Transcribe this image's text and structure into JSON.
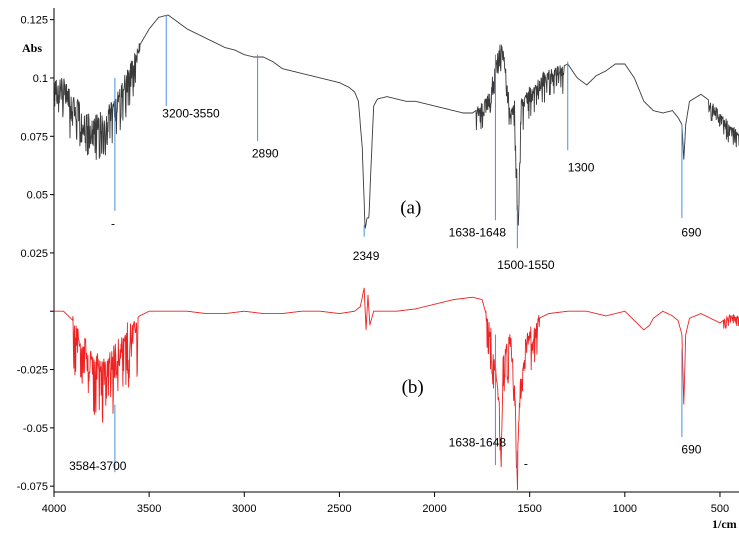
{
  "chart_data": {
    "type": "line",
    "xlabel": "1/cm",
    "ylabel": "Abs",
    "x_reversed": true,
    "xlim": [
      4000,
      400
    ],
    "ylim": [
      -0.0775,
      0.13
    ],
    "x_ticks": [
      4000,
      3500,
      3000,
      2500,
      2000,
      1500,
      1000,
      500
    ],
    "y_ticks": [
      {
        "value": 0.125,
        "label": "0.125"
      },
      {
        "value": 0.1,
        "label": "0.1"
      },
      {
        "value": 0.075,
        "label": "0.075"
      },
      {
        "value": 0.05,
        "label": "0.05"
      },
      {
        "value": 0.025,
        "label": "0.025"
      },
      {
        "value": 0,
        "label": ""
      },
      {
        "value": -0.025,
        "label": "-0.025"
      },
      {
        "value": -0.05,
        "label": "-0.05"
      },
      {
        "value": -0.075,
        "label": "-0.075"
      }
    ],
    "grid": false,
    "legend": "none",
    "series": [
      {
        "id": "a",
        "color": "#3a3a3a",
        "noise": [
          {
            "from": 4000,
            "to": 3550,
            "amp": 0.018
          },
          {
            "from": 1780,
            "to": 1320,
            "amp": 0.012
          },
          {
            "from": 560,
            "to": 400,
            "amp": 0.008
          }
        ],
        "points": [
          [
            4000,
            0.1
          ],
          [
            3950,
            0.098
          ],
          [
            3900,
            0.092
          ],
          [
            3850,
            0.086
          ],
          [
            3800,
            0.082
          ],
          [
            3750,
            0.084
          ],
          [
            3700,
            0.088
          ],
          [
            3650,
            0.095
          ],
          [
            3600,
            0.105
          ],
          [
            3550,
            0.114
          ],
          [
            3500,
            0.121
          ],
          [
            3450,
            0.126
          ],
          [
            3400,
            0.127
          ],
          [
            3350,
            0.124
          ],
          [
            3300,
            0.121
          ],
          [
            3250,
            0.119
          ],
          [
            3200,
            0.117
          ],
          [
            3150,
            0.115
          ],
          [
            3100,
            0.113
          ],
          [
            3050,
            0.112
          ],
          [
            3000,
            0.11
          ],
          [
            2950,
            0.109
          ],
          [
            2900,
            0.109
          ],
          [
            2850,
            0.107
          ],
          [
            2800,
            0.104
          ],
          [
            2750,
            0.103
          ],
          [
            2700,
            0.102
          ],
          [
            2650,
            0.101
          ],
          [
            2600,
            0.1
          ],
          [
            2550,
            0.099
          ],
          [
            2500,
            0.098
          ],
          [
            2450,
            0.096
          ],
          [
            2420,
            0.094
          ],
          [
            2400,
            0.09
          ],
          [
            2380,
            0.07
          ],
          [
            2365,
            0.035
          ],
          [
            2355,
            0.04
          ],
          [
            2345,
            0.04
          ],
          [
            2335,
            0.06
          ],
          [
            2320,
            0.088
          ],
          [
            2300,
            0.091
          ],
          [
            2250,
            0.092
          ],
          [
            2200,
            0.091
          ],
          [
            2150,
            0.09
          ],
          [
            2100,
            0.09
          ],
          [
            2050,
            0.089
          ],
          [
            2000,
            0.088
          ],
          [
            1950,
            0.087
          ],
          [
            1900,
            0.086
          ],
          [
            1850,
            0.085
          ],
          [
            1800,
            0.085
          ],
          [
            1750,
            0.088
          ],
          [
            1720,
            0.092
          ],
          [
            1700,
            0.098
          ],
          [
            1680,
            0.107
          ],
          [
            1660,
            0.113
          ],
          [
            1640,
            0.114
          ],
          [
            1630,
            0.105
          ],
          [
            1620,
            0.1
          ],
          [
            1600,
            0.085
          ],
          [
            1580,
            0.09
          ],
          [
            1560,
            0.04
          ],
          [
            1545,
            0.09
          ],
          [
            1500,
            0.095
          ],
          [
            1450,
            0.1
          ],
          [
            1400,
            0.103
          ],
          [
            1350,
            0.104
          ],
          [
            1300,
            0.106
          ],
          [
            1250,
            0.1
          ],
          [
            1200,
            0.097
          ],
          [
            1150,
            0.101
          ],
          [
            1100,
            0.103
          ],
          [
            1050,
            0.106
          ],
          [
            1000,
            0.106
          ],
          [
            950,
            0.1
          ],
          [
            900,
            0.09
          ],
          [
            850,
            0.086
          ],
          [
            800,
            0.085
          ],
          [
            750,
            0.086
          ],
          [
            720,
            0.083
          ],
          [
            700,
            0.08
          ],
          [
            690,
            0.065
          ],
          [
            680,
            0.08
          ],
          [
            660,
            0.09
          ],
          [
            600,
            0.093
          ],
          [
            550,
            0.09
          ],
          [
            500,
            0.085
          ],
          [
            450,
            0.08
          ],
          [
            400,
            0.076
          ]
        ]
      },
      {
        "id": "b",
        "color": "#ee2222",
        "noise": [
          {
            "from": 3900,
            "to": 3560,
            "amp": 0.025
          },
          {
            "from": 1730,
            "to": 1450,
            "amp": 0.018
          },
          {
            "from": 480,
            "to": 400,
            "amp": 0.005
          }
        ],
        "points": [
          [
            4000,
            0.0
          ],
          [
            3950,
            0.0
          ],
          [
            3900,
            -0.004
          ],
          [
            3850,
            -0.012
          ],
          [
            3800,
            -0.018
          ],
          [
            3750,
            -0.022
          ],
          [
            3700,
            -0.018
          ],
          [
            3650,
            -0.012
          ],
          [
            3600,
            -0.006
          ],
          [
            3550,
            -0.002
          ],
          [
            3500,
            0.0
          ],
          [
            3400,
            0.0
          ],
          [
            3300,
            0.0
          ],
          [
            3200,
            -0.001
          ],
          [
            3100,
            -0.001
          ],
          [
            3000,
            0.0
          ],
          [
            2900,
            -0.001
          ],
          [
            2800,
            -0.001
          ],
          [
            2700,
            0.0
          ],
          [
            2600,
            0.0
          ],
          [
            2500,
            -0.001
          ],
          [
            2420,
            0.0
          ],
          [
            2390,
            0.002
          ],
          [
            2370,
            0.01
          ],
          [
            2360,
            -0.008
          ],
          [
            2350,
            0.007
          ],
          [
            2340,
            -0.006
          ],
          [
            2320,
            0.0
          ],
          [
            2250,
            0.0
          ],
          [
            2200,
            0.0
          ],
          [
            2100,
            0.001
          ],
          [
            2000,
            0.003
          ],
          [
            1900,
            0.005
          ],
          [
            1800,
            0.006
          ],
          [
            1750,
            0.005
          ],
          [
            1700,
            -0.01
          ],
          [
            1660,
            -0.04
          ],
          [
            1650,
            -0.065
          ],
          [
            1640,
            -0.02
          ],
          [
            1620,
            -0.015
          ],
          [
            1600,
            -0.01
          ],
          [
            1580,
            -0.03
          ],
          [
            1565,
            -0.064
          ],
          [
            1550,
            -0.03
          ],
          [
            1520,
            -0.012
          ],
          [
            1480,
            -0.006
          ],
          [
            1450,
            -0.003
          ],
          [
            1400,
            -0.001
          ],
          [
            1300,
            0.0
          ],
          [
            1200,
            0.0
          ],
          [
            1100,
            -0.002
          ],
          [
            1050,
            -0.001
          ],
          [
            1000,
            0.0
          ],
          [
            950,
            -0.004
          ],
          [
            900,
            -0.008
          ],
          [
            870,
            -0.006
          ],
          [
            850,
            -0.003
          ],
          [
            800,
            0.0
          ],
          [
            750,
            -0.002
          ],
          [
            720,
            -0.004
          ],
          [
            700,
            -0.01
          ],
          [
            690,
            -0.04
          ],
          [
            680,
            -0.01
          ],
          [
            660,
            -0.003
          ],
          [
            600,
            -0.001
          ],
          [
            550,
            -0.003
          ],
          [
            500,
            -0.005
          ],
          [
            450,
            -0.002
          ],
          [
            400,
            -0.002
          ]
        ]
      }
    ],
    "annotations": [
      {
        "series": "a",
        "x": 3680,
        "y_top": 0.1,
        "y_bottom": 0.043,
        "label": "-",
        "label_x": 3690,
        "label_y": 0.036
      },
      {
        "series": "a",
        "x": 3410,
        "y_top": 0.127,
        "y_bottom": 0.088,
        "label": "3200-3550",
        "label_x": 3280,
        "label_y": 0.083
      },
      {
        "series": "a",
        "x": 2930,
        "y_top": 0.11,
        "y_bottom": 0.073,
        "label": "2890",
        "label_x": 2890,
        "label_y": 0.066
      },
      {
        "series": "a",
        "x": 2370,
        "y_top": 0.037,
        "y_bottom": 0.032,
        "label": "2349",
        "label_x": 2360,
        "label_y": 0.022
      },
      {
        "series": "a",
        "x": 1680,
        "y_top": 0.11,
        "y_bottom": 0.039,
        "label": "1638-1648",
        "label_x": 1775,
        "label_y": 0.032
      },
      {
        "series": "a",
        "x": 1565,
        "y_top": 0.045,
        "y_bottom": 0.027,
        "label": "1500-1550",
        "label_x": 1520,
        "label_y": 0.018
      },
      {
        "series": "a",
        "x": 1300,
        "y_top": 0.107,
        "y_bottom": 0.069,
        "label": "1300",
        "label_x": 1230,
        "label_y": 0.06
      },
      {
        "series": "a",
        "x": 700,
        "y_top": 0.08,
        "y_bottom": 0.04,
        "label": "690",
        "label_x": 650,
        "label_y": 0.032
      },
      {
        "series": "b",
        "x": 3680,
        "y_top": -0.04,
        "y_bottom": -0.069,
        "label": "3584-3700",
        "label_x": 3770,
        "label_y": -0.068
      },
      {
        "series": "b",
        "x": 1680,
        "y_top": -0.01,
        "y_bottom": -0.066,
        "label": "1638-1648",
        "label_x": 1775,
        "label_y": -0.058
      },
      {
        "series": "b",
        "x": 1565,
        "y_top": -0.06,
        "y_bottom": -0.068,
        "label": "-",
        "label_x": 1520,
        "label_y": -0.067
      },
      {
        "series": "b",
        "x": 700,
        "y_top": -0.016,
        "y_bottom": -0.054,
        "label": "690",
        "label_x": 650,
        "label_y": -0.061
      }
    ],
    "panel_labels": [
      {
        "text": "(a)",
        "x": 2125,
        "y": 0.042
      },
      {
        "text": "(b)",
        "x": 2115,
        "y": -0.035
      }
    ]
  }
}
